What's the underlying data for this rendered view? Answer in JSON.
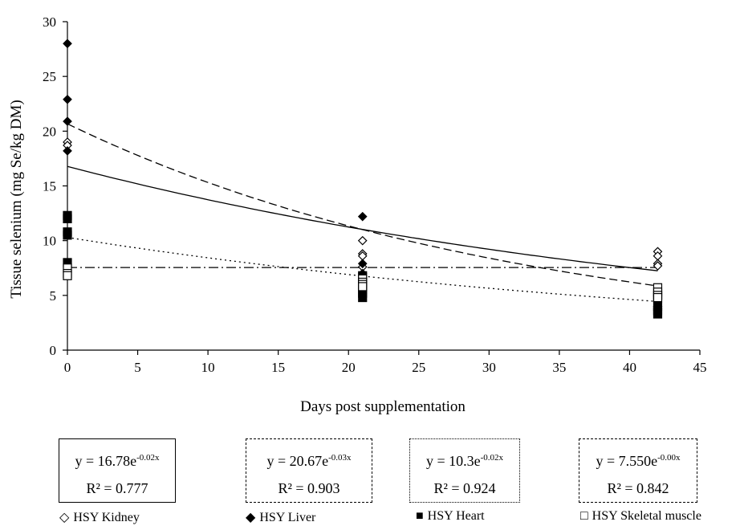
{
  "chart_data": {
    "type": "scatter",
    "xlabel": "Days post supplementation",
    "ylabel": "Tissue selenium (mg Se/kg DM)",
    "xlim": [
      0,
      45
    ],
    "ylim": [
      0,
      30
    ],
    "xticks": [
      0,
      5,
      10,
      15,
      20,
      25,
      30,
      35,
      40,
      45
    ],
    "yticks": [
      0,
      5,
      10,
      15,
      20,
      25,
      30
    ],
    "grid": false,
    "legend_position": "bottom",
    "series": [
      {
        "name": "HSY Kidney",
        "marker": "diamond-open",
        "points": [
          [
            0,
            19.0
          ],
          [
            0,
            18.7
          ],
          [
            21,
            10.0
          ],
          [
            21,
            8.8
          ],
          [
            21,
            8.6
          ],
          [
            21,
            7.6
          ],
          [
            42,
            9.0
          ],
          [
            42,
            8.6
          ],
          [
            42,
            7.9
          ],
          [
            42,
            7.7
          ]
        ],
        "trend": {
          "a": 16.78,
          "b": -0.02,
          "line": "solid",
          "label_eq": "y = 16.78e",
          "label_exp": "-0.02x",
          "label_r2": "R² = 0.777"
        }
      },
      {
        "name": "HSY Liver",
        "marker": "diamond-filled",
        "points": [
          [
            0,
            28.0
          ],
          [
            0,
            22.9
          ],
          [
            0,
            20.9
          ],
          [
            0,
            18.2
          ],
          [
            21,
            12.2
          ],
          [
            21,
            7.9
          ],
          [
            21,
            7.0
          ],
          [
            21,
            6.2
          ],
          [
            42,
            5.2
          ],
          [
            42,
            4.4
          ],
          [
            42,
            4.0
          ],
          [
            42,
            3.8
          ]
        ],
        "trend": {
          "a": 20.67,
          "b": -0.03,
          "line": "dashed",
          "label_eq": "y = 20.67e",
          "label_exp": "-0.03x",
          "label_r2": "R² = 0.903"
        }
      },
      {
        "name": "HSY Heart",
        "marker": "square-filled",
        "points": [
          [
            0,
            12.3
          ],
          [
            0,
            12.0
          ],
          [
            0,
            10.8
          ],
          [
            0,
            10.5
          ],
          [
            0,
            8.0
          ],
          [
            21,
            6.8
          ],
          [
            21,
            6.0
          ],
          [
            21,
            5.6
          ],
          [
            21,
            5.2
          ],
          [
            21,
            4.8
          ],
          [
            42,
            5.0
          ],
          [
            42,
            4.0
          ],
          [
            42,
            3.6
          ],
          [
            42,
            3.3
          ]
        ],
        "trend": {
          "a": 10.3,
          "b": -0.02,
          "line": "dotted",
          "label_eq": "y = 10.3e",
          "label_exp": "-0.02x",
          "label_r2": "R² = 0.924"
        }
      },
      {
        "name": "HSY Skeletal muscle",
        "marker": "square-open",
        "points": [
          [
            0,
            7.5
          ],
          [
            0,
            7.0
          ],
          [
            0,
            6.8
          ],
          [
            21,
            6.5
          ],
          [
            21,
            6.2
          ],
          [
            21,
            6.0
          ],
          [
            21,
            5.8
          ],
          [
            42,
            5.7
          ],
          [
            42,
            5.3
          ],
          [
            42,
            5.0
          ],
          [
            42,
            4.8
          ]
        ],
        "trend": {
          "a": 7.55,
          "b": -0.0,
          "line": "dashdot",
          "label_eq": "y = 7.550e",
          "label_exp": "-0.00x",
          "label_r2": "R² = 0.842"
        }
      }
    ]
  }
}
